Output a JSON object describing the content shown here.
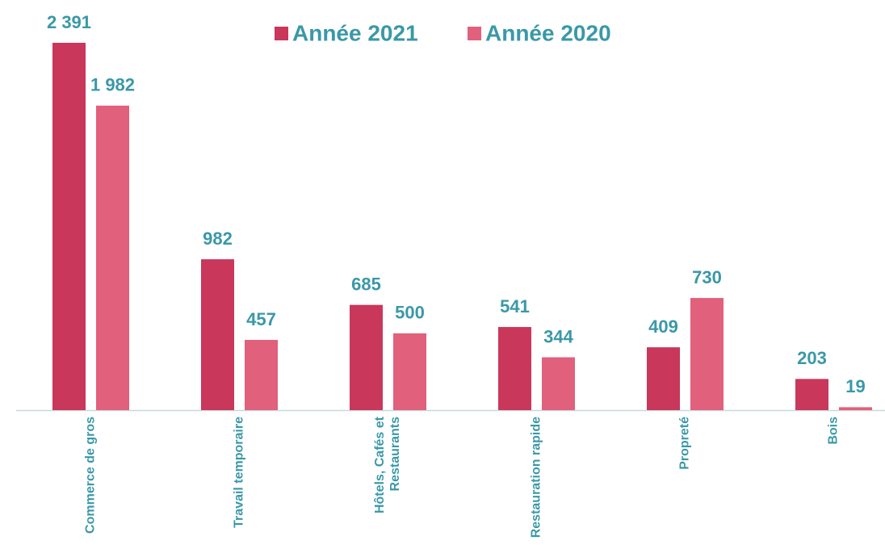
{
  "chart_data": {
    "type": "bar",
    "categories": [
      "Commerce de gros",
      "Travail temporaire",
      "Hôtels, Cafés et Restaurants",
      "Restauration rapide",
      "Propreté",
      "Bois"
    ],
    "series": [
      {
        "name": "Année 2021",
        "color": "#c9375a",
        "values": [
          2391,
          982,
          685,
          541,
          409,
          203
        ],
        "value_labels": [
          "2 391",
          "982",
          "685",
          "541",
          "409",
          "203"
        ]
      },
      {
        "name": "Année 2020",
        "color": "#e1607b",
        "values": [
          1982,
          457,
          500,
          344,
          730,
          19
        ],
        "value_labels": [
          "1 982",
          "457",
          "500",
          "344",
          "730",
          "19"
        ]
      }
    ],
    "legend": "top"
  }
}
